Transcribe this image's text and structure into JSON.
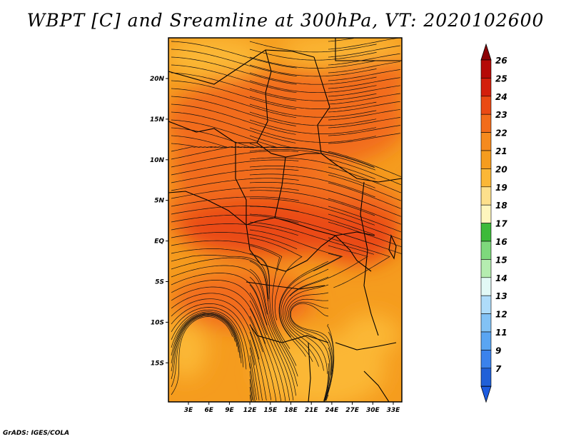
{
  "title": "WBPT [C] and Sreamline at 300hPa, VT: 2020102600",
  "footer": "GrADS: IGES/COLA",
  "map": {
    "lat_ticks": [
      "20N",
      "15N",
      "10N",
      "5N",
      "EQ",
      "5S",
      "10S",
      "15S"
    ],
    "lon_ticks": [
      "3E",
      "6E",
      "9E",
      "12E",
      "15E",
      "18E",
      "21E",
      "24E",
      "27E",
      "30E",
      "33E"
    ],
    "fill_colors": {
      "base": "#f59c1e",
      "warm": "#f26c1a",
      "hot": "#ea4a14",
      "cool": "#fbb736"
    }
  },
  "colorbar": {
    "levels": [
      {
        "label": "26",
        "color": "#b50a07"
      },
      {
        "label": "25",
        "color": "#d31f0c"
      },
      {
        "label": "24",
        "color": "#ea4a14"
      },
      {
        "label": "23",
        "color": "#f26c1a"
      },
      {
        "label": "22",
        "color": "#f58a1e"
      },
      {
        "label": "21",
        "color": "#f59c1e"
      },
      {
        "label": "20",
        "color": "#fbb736"
      },
      {
        "label": "19",
        "color": "#fde08c"
      },
      {
        "label": "18",
        "color": "#fef6bd"
      },
      {
        "label": "17",
        "color": "#3cba3a"
      },
      {
        "label": "16",
        "color": "#7ed87c"
      },
      {
        "label": "15",
        "color": "#b5edb0"
      },
      {
        "label": "14",
        "color": "#e2f9f6"
      },
      {
        "label": "13",
        "color": "#aedcfa"
      },
      {
        "label": "12",
        "color": "#82c2f5"
      },
      {
        "label": "11",
        "color": "#5aa5f2"
      },
      {
        "label": "9",
        "color": "#3b82ec"
      },
      {
        "label": "7",
        "color": "#2060d8"
      }
    ],
    "top_arrow_color": "#8c0205",
    "bottom_arrow_color": "#1c5ce0"
  }
}
